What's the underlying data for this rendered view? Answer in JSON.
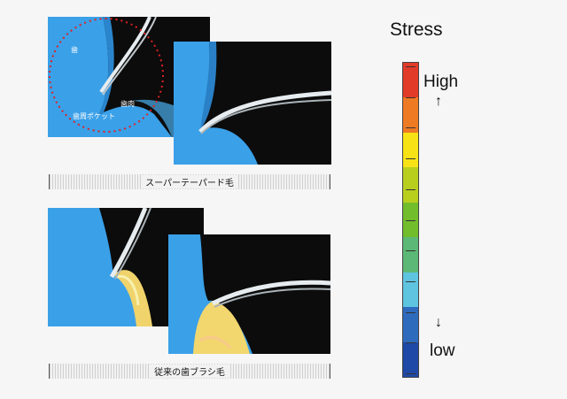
{
  "overlay_labels": {
    "tooth": "歯",
    "gum": "歯肉",
    "pocket": "歯周ポケット"
  },
  "captions": {
    "super_tapered": "スーパーテーパード毛",
    "conventional": "従来の歯ブラシ毛"
  },
  "legend": {
    "title": "Stress",
    "high_label": "High",
    "high_arrow": "↑",
    "low_arrow": "↓",
    "low_label": "low",
    "colors": [
      "#e23b2a",
      "#ee7a23",
      "#f7e315",
      "#b9cf1e",
      "#72bd2b",
      "#5cb876",
      "#5ec4e0",
      "#2f6bbd",
      "#1f49a6"
    ]
  }
}
